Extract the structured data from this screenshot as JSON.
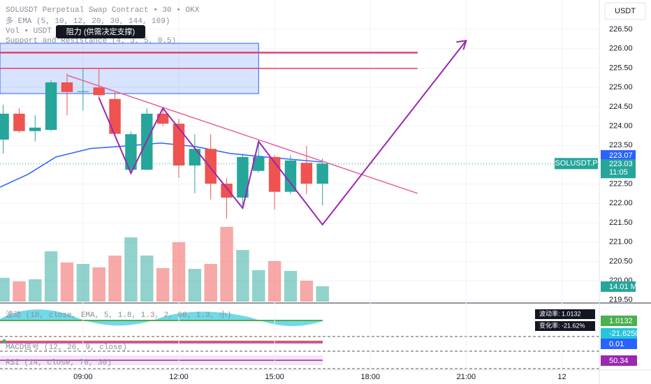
{
  "chart_data": {
    "type": "candlestick",
    "title": "SOLUSDT Perpetual Swap Contract • 30 • OKX",
    "legend_lines": [
      "多 EMA (5, 10, 12, 20, 30, 144, 169)",
      "Vol • USDT",
      "Support and Resistance (4, 3, 5, 0.5)"
    ],
    "tooltip": "阻力 (供需决定支撑)",
    "currency_button": "USDT",
    "up_color": "#26a69a",
    "down_color": "#ef5350",
    "candles": {
      "x": [
        6.5,
        7,
        7.5,
        8,
        8.5,
        9,
        9.5,
        10,
        10.5,
        11,
        11.5,
        12,
        12.5,
        13,
        13.5,
        14,
        14.5,
        15,
        15.5,
        16,
        16.5
      ],
      "open": [
        223.65,
        224.32,
        223.87,
        223.9,
        225.13,
        224.88,
        225.0,
        224.7,
        222.87,
        222.87,
        224.32,
        224.06,
        222.98,
        223.41,
        222.51,
        222.15,
        222.84,
        223.2,
        222.3,
        223.05,
        222.51
      ],
      "high": [
        224.55,
        224.46,
        224.28,
        225.18,
        225.36,
        225.49,
        225.5,
        224.88,
        223.86,
        224.46,
        224.46,
        224.19,
        223.79,
        223.79,
        222.66,
        223.29,
        223.56,
        223.25,
        223.25,
        223.48,
        223.16
      ],
      "low": [
        223.29,
        223.83,
        223.6,
        223.87,
        224.28,
        224.4,
        224.68,
        223.74,
        222.75,
        222.87,
        224.0,
        222.66,
        222.26,
        222.1,
        221.61,
        221.86,
        222.8,
        221.84,
        222.24,
        222.24,
        221.95
      ],
      "close": [
        224.32,
        223.87,
        223.96,
        225.13,
        224.88,
        224.9,
        224.8,
        223.8,
        223.79,
        224.32,
        224.06,
        222.98,
        223.41,
        222.51,
        222.15,
        223.2,
        223.2,
        222.3,
        223.11,
        222.51,
        223.03
      ]
    },
    "volume": {
      "values": [
        21.7,
        18.5,
        20.4,
        45.9,
        35.7,
        34.4,
        31.2,
        42,
        58.6,
        42,
        30.6,
        54.2,
        29.9,
        34.4,
        68.2,
        47.1,
        28.7,
        37,
        28,
        19.1,
        14.01
      ],
      "last_label": "14.01 M"
    },
    "ema": {
      "x": [
        6.4,
        7.27,
        8.15,
        9.24,
        10.12,
        11.43,
        12.52,
        13.62,
        14.71,
        16.48
      ],
      "values": [
        222.42,
        222.75,
        223.2,
        223.42,
        223.47,
        223.56,
        223.47,
        223.29,
        223.2,
        223.07
      ],
      "color": "#2962ff"
    },
    "resistance_zone": {
      "x": [
        6.4,
        14.5
      ],
      "values": [
        224.84,
        226.14
      ],
      "color": "#2962ff"
    },
    "resistance_lines": {
      "x": [
        6.4,
        19.48
      ],
      "values": [
        225.9,
        225.49
      ],
      "color": "#e0436b"
    },
    "trend_line": {
      "x": [
        8.52,
        19.48
      ],
      "values": [
        225.31,
        222.26
      ],
      "color": "#e8609a"
    },
    "projection": {
      "x": [
        9.5,
        10.5,
        11.5,
        14,
        14.5,
        16.5,
        21
      ],
      "values": [
        224.73,
        222.78,
        224.46,
        221.88,
        223.6,
        221.45,
        226.21
      ],
      "color": "#9c27b0"
    },
    "ema_tag": {
      "value": 223.07,
      "label": "223.07"
    },
    "last_price": {
      "value": 223.03,
      "label": "223.03",
      "countdown": "11:05",
      "symbol": "SOLUSDT.P"
    },
    "ylim": [
      219.46,
      227.26
    ],
    "yticks": [
      {
        "value": 219.5,
        "label": "219.50"
      },
      {
        "value": 220,
        "label": "220.00"
      },
      {
        "value": 220.5,
        "label": "220.50"
      },
      {
        "value": 221,
        "label": "221.00"
      },
      {
        "value": 221.5,
        "label": "221.50"
      },
      {
        "value": 222,
        "label": "222.00"
      },
      {
        "value": 222.5,
        "label": "222.50"
      },
      {
        "value": 223,
        "label": "223.00"
      },
      {
        "value": 223.5,
        "label": "223.50"
      },
      {
        "value": 224,
        "label": "224.00"
      },
      {
        "value": 224.5,
        "label": "224.50"
      },
      {
        "value": 225,
        "label": "225.00"
      },
      {
        "value": 225.5,
        "label": "225.50"
      },
      {
        "value": 226,
        "label": "226.00"
      },
      {
        "value": 226.5,
        "label": "226.50"
      }
    ],
    "xlim": [
      6.4,
      25.17
    ],
    "xticks": [
      {
        "value": 9,
        "label": "09:00"
      },
      {
        "value": 12,
        "label": "12:00"
      },
      {
        "value": 15,
        "label": "15:00"
      },
      {
        "value": 18,
        "label": "18:00"
      },
      {
        "value": 21,
        "label": "21:00"
      },
      {
        "value": 24,
        "label": "12"
      }
    ],
    "indicators": [
      {
        "legend": "波动 (10, close, EMA, 5, 1.8, 1.3, 2, 60, 1.3, 小)",
        "tags": [
          {
            "value": 1.0132,
            "label": "1.0132",
            "color": "#4caf50"
          },
          {
            "value": -21.625,
            "label": "-21.6250",
            "color": "#26c6da"
          }
        ],
        "notes": [
          "波动率: 1.0132",
          "变化率: -21.62%"
        ]
      },
      {
        "legend": "MACD信号 (12, 26, 9, close)",
        "tags": [
          {
            "value": 0.01,
            "label": "0.01",
            "color": "#2962ff"
          }
        ]
      },
      {
        "legend": "RSI (14, close, 70, 30)",
        "tags": [
          {
            "value": 50.34,
            "label": "50.34",
            "color": "#9c27b0"
          }
        ]
      }
    ]
  }
}
